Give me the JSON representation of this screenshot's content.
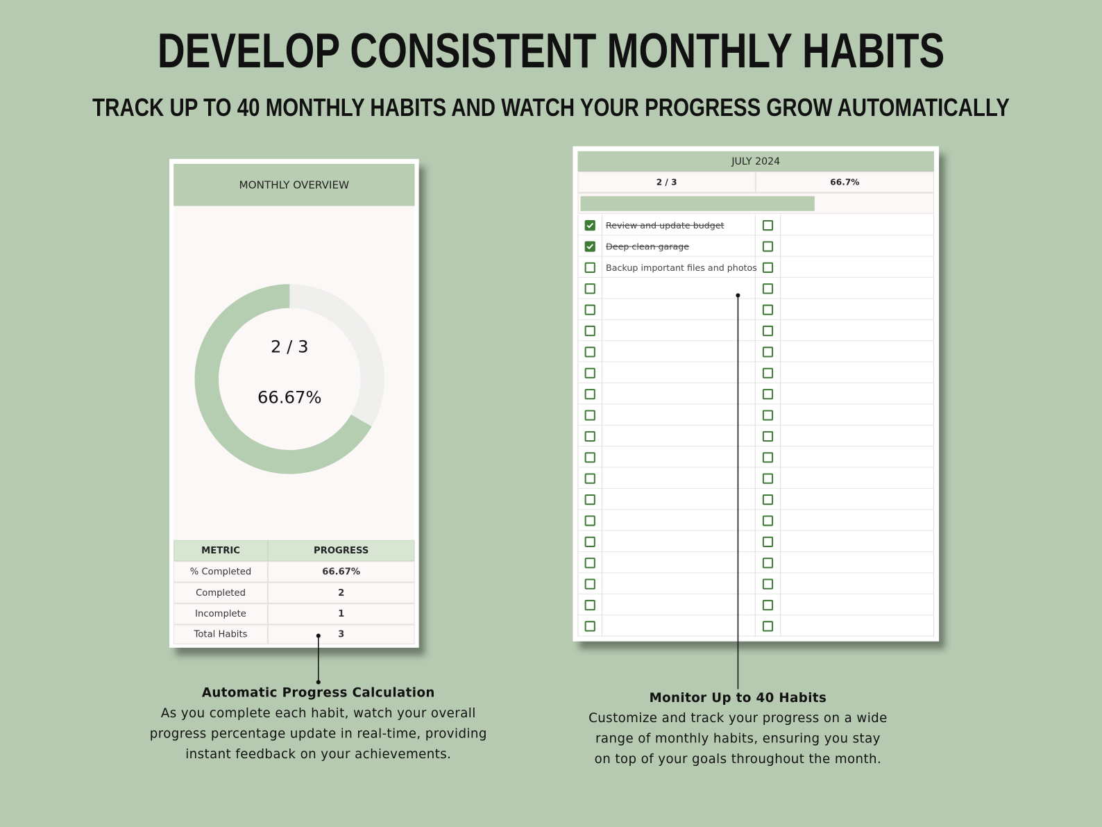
{
  "header": {
    "title": "DEVELOP CONSISTENT MONTHLY HABITS",
    "subtitle": "TRACK UP TO 40 MONTHLY HABITS AND WATCH YOUR PROGRESS GROW AUTOMATICALLY"
  },
  "overview": {
    "title": "MONTHLY OVERVIEW",
    "donut": {
      "label": "2 / 3",
      "percent": 66.67,
      "percent_label": "66.67%"
    },
    "table": {
      "headers": [
        "METRIC",
        "PROGRESS"
      ],
      "rows": [
        [
          "% Completed",
          "66.67%"
        ],
        [
          "Completed",
          2
        ],
        [
          "Incomplete",
          1
        ],
        [
          "Total Habits",
          3
        ]
      ]
    }
  },
  "tracker": {
    "month": "JULY 2024",
    "count": "2 / 3",
    "percent": 66.7,
    "percent_label": "66.7%",
    "habits": [
      {
        "text": "Review and update budget",
        "done": true
      },
      {
        "text": "Deep clean garage",
        "done": true
      },
      {
        "text": "Backup important files and photos",
        "done": false
      }
    ]
  },
  "callouts": [
    {
      "title": "Automatic Progress Calculation",
      "text": "As you complete each habit, watch your overall progress percentage update in real-time, providing instant feedback on your achievements."
    },
    {
      "title": "Monitor Up to 40 Habits",
      "text": "Customize and track your progress on a wide range of monthly habits, ensuring you stay on top of your goals throughout the month."
    }
  ]
}
